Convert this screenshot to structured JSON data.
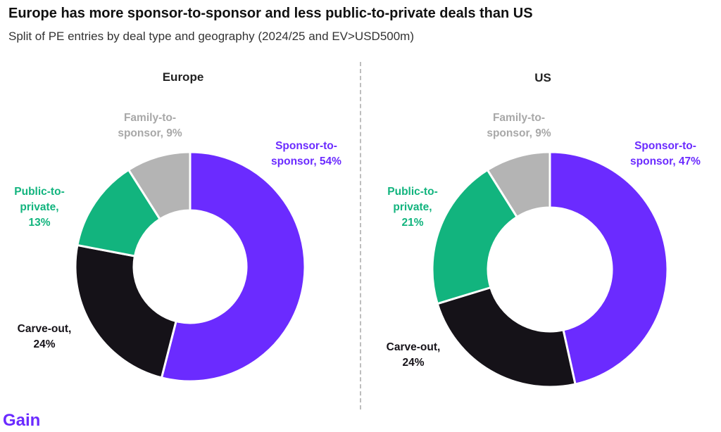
{
  "header": {
    "title": "Europe has more sponsor-to-sponsor and less public-to-private deals than US",
    "subtitle": "Split of PE entries by deal type and geography (2024/25 and EV>USD500m)"
  },
  "logo": {
    "text": "Gain",
    "color": "#6b2bff"
  },
  "colors": {
    "Sponsor-to-sponsor": "#6b2bff",
    "Carve-out": "#151218",
    "Public-to-private": "#12b47e",
    "Family-to-sponsor": "#b4b4b4"
  },
  "chart_data": [
    {
      "type": "pie",
      "donut": true,
      "title": "Europe",
      "categories": [
        "Sponsor-to-sponsor",
        "Carve-out",
        "Public-to-private",
        "Family-to-sponsor"
      ],
      "values": [
        54,
        24,
        13,
        9
      ],
      "unit": "%",
      "labels": [
        [
          "Sponsor-to-",
          "sponsor, 54%"
        ],
        [
          "Carve-out,",
          "24%"
        ],
        [
          "Public-to-",
          "private,",
          "13%"
        ],
        [
          "Family-to-",
          "sponsor, 9%"
        ]
      ]
    },
    {
      "type": "pie",
      "donut": true,
      "title": "US",
      "categories": [
        "Sponsor-to-sponsor",
        "Carve-out",
        "Public-to-private",
        "Family-to-sponsor"
      ],
      "values": [
        47,
        24,
        21,
        9
      ],
      "unit": "%",
      "labels": [
        [
          "Sponsor-to-",
          "sponsor, 47%"
        ],
        [
          "Carve-out,",
          "24%"
        ],
        [
          "Public-to-",
          "private,",
          "21%"
        ],
        [
          "Family-to-",
          "sponsor, 9%"
        ]
      ]
    }
  ]
}
